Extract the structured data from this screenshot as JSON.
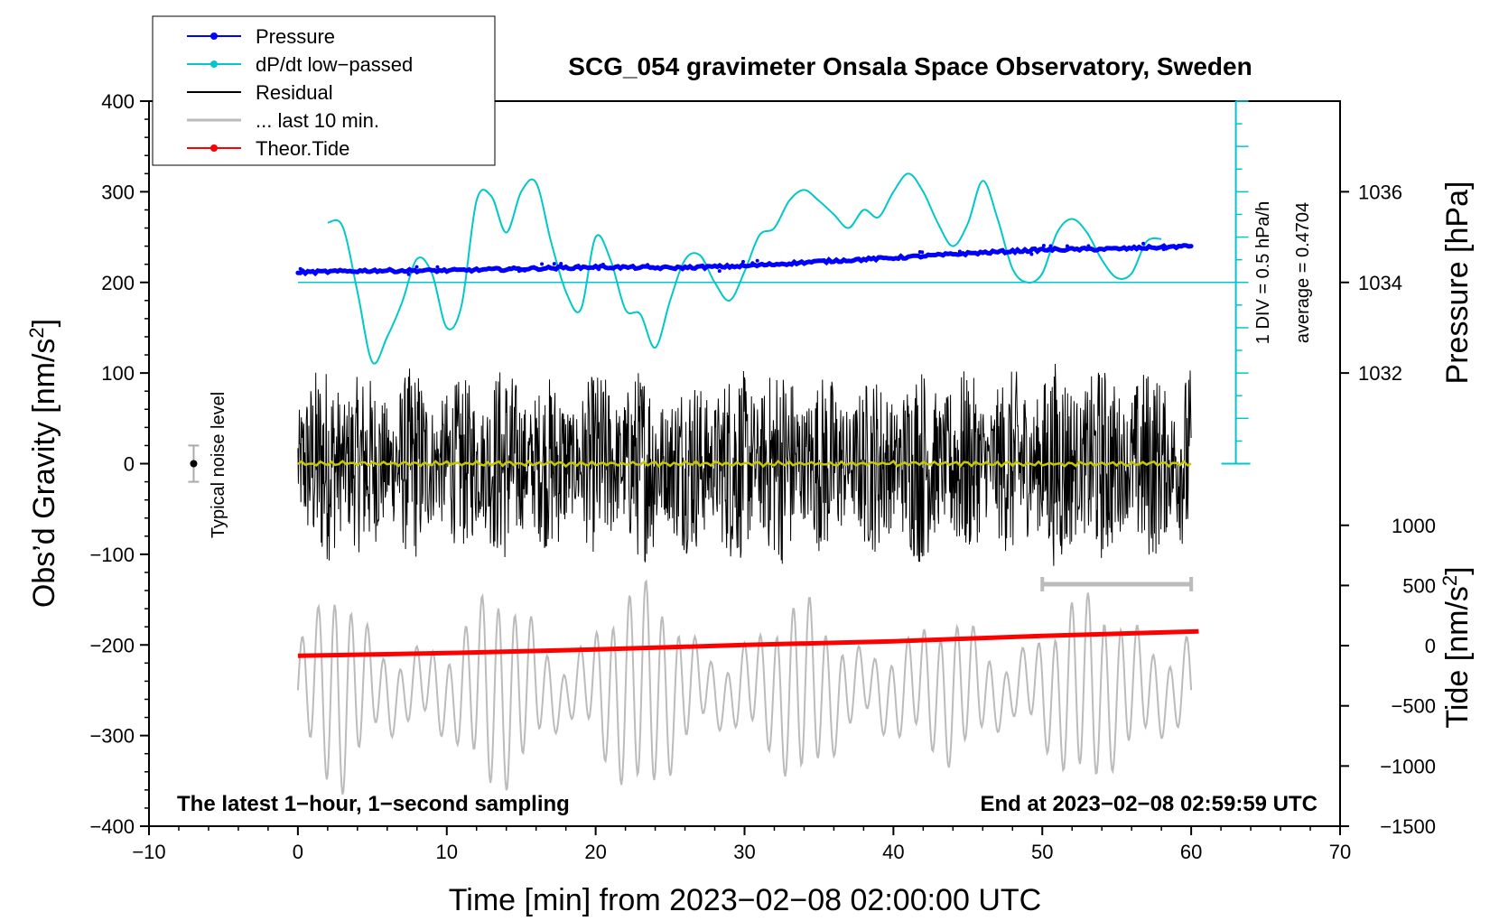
{
  "chart_data": {
    "type": "line",
    "title": "SCG_054 gravimeter Onsala Space Observatory, Sweden",
    "xlabel": "Time [min] from 2023−02−08 02:00:00 UTC",
    "ylabel_left": "Obs’d Gravity [nm/s",
    "ylabel_left_sup": "2",
    "ylabel_left_tail": "]",
    "ylabel_pressure": "Pressure [hPa]",
    "ylabel_tide": "Tide [nm/s",
    "ylabel_tide_sup": "2",
    "ylabel_tide_tail": "]",
    "xlim": [
      -10,
      70
    ],
    "ylim_left": [
      -400,
      400
    ],
    "x_ticks": [
      -10,
      0,
      10,
      20,
      30,
      40,
      50,
      60,
      70
    ],
    "x_tick_labels": [
      "−10",
      "0",
      "10",
      "20",
      "30",
      "40",
      "50",
      "60",
      "70"
    ],
    "y_left_ticks": [
      400,
      300,
      200,
      100,
      0,
      -100,
      -200,
      -300,
      -400
    ],
    "y_left_tick_labels": [
      "400",
      "300",
      "200",
      "100",
      "0",
      "−100",
      "−200",
      "−300",
      "−400"
    ],
    "pressure_ticks": [
      1036,
      1034,
      1032
    ],
    "pressure_tick_labels": [
      "1036",
      "1034",
      "1032"
    ],
    "pressure_scale": {
      "ref_hpa": 1034,
      "ref_gravity": 200,
      "hpa_per_100": 2
    },
    "tide_ticks": [
      1000,
      500,
      0,
      -500,
      -1000,
      -1500
    ],
    "tide_tick_labels": [
      "1000",
      "500",
      "0",
      "−500",
      "−1000",
      "−1500"
    ],
    "tide_scale": {
      "tide_min": -1500,
      "tide_max": 1000,
      "gravity_at_min": -400,
      "gravity_at_max": -68
    },
    "noise_level": {
      "x": -7,
      "y": 0,
      "err": 20,
      "label": "Typical noise level"
    },
    "dpdt_scale_text": "1 DIV = 0.5 hPa/h",
    "dpdt_average_text": "average = 0.4704",
    "dpdt_axis": {
      "x": 63,
      "from": 200,
      "to": 0,
      "top": 400
    },
    "note_left": "The latest 1−hour, 1−second sampling",
    "note_right": "End at 2023−02−08 02:59:59 UTC",
    "last10_bracket": [
      50,
      60
    ],
    "legend": [
      {
        "label": "Pressure",
        "color": "#0000ff",
        "marker": true
      },
      {
        "label": "dP/dt low−passed",
        "color": "#00c8c8",
        "marker": true
      },
      {
        "label": "Residual",
        "color": "#000000",
        "marker": false
      },
      {
        "label": "... last 10 min.",
        "color": "#bbbbbb",
        "marker": false
      },
      {
        "label": "Theor.Tide",
        "color": "#ff0000",
        "marker": true
      }
    ],
    "series": [
      {
        "name": "Pressure",
        "unit": "hPa",
        "color": "#0000ff",
        "x": [
          0,
          5,
          10,
          15,
          20,
          25,
          30,
          35,
          40,
          45,
          50,
          55,
          60
        ],
        "values": [
          1034.22,
          1034.26,
          1034.26,
          1034.3,
          1034.34,
          1034.32,
          1034.36,
          1034.46,
          1034.54,
          1034.64,
          1034.72,
          1034.74,
          1034.8
        ]
      },
      {
        "name": "dP/dt low−passed",
        "unit": "nm/s2 equiv.",
        "color": "#00c8c8",
        "x": [
          2,
          3,
          4,
          5,
          6,
          7,
          8,
          9,
          10,
          11,
          12,
          13,
          14,
          15,
          16,
          17,
          18,
          19,
          20,
          21,
          22,
          23,
          24,
          25,
          26,
          27,
          28,
          29,
          30,
          31,
          32,
          33,
          34,
          35,
          36,
          37,
          38,
          39,
          40,
          41,
          42,
          43,
          44,
          45,
          46,
          47,
          48,
          49,
          50,
          51,
          52,
          53,
          54,
          55,
          56,
          57,
          58
        ],
        "values": [
          266,
          262,
          190,
          112,
          140,
          178,
          226,
          210,
          150,
          175,
          290,
          295,
          255,
          300,
          310,
          245,
          190,
          170,
          250,
          225,
          170,
          165,
          128,
          180,
          225,
          230,
          200,
          180,
          212,
          252,
          260,
          290,
          302,
          290,
          275,
          260,
          280,
          272,
          300,
          320,
          300,
          265,
          240,
          265,
          312,
          270,
          215,
          200,
          210,
          255,
          270,
          255,
          225,
          205,
          210,
          245,
          248
        ]
      },
      {
        "name": "Residual",
        "unit": "nm/s2",
        "color": "#000000",
        "x_range": [
          0,
          60
        ],
        "amp": [
          100,
          120,
          95,
          110,
          90,
          115,
          100,
          95,
          105,
          110,
          100,
          108,
          115,
          110,
          95,
          100,
          112,
          105,
          100,
          112,
          118,
          105,
          108,
          110
        ]
      },
      {
        "name": "Residual smoothed",
        "unit": "nm/s2",
        "color": "#c8c800",
        "x_range": [
          0,
          60
        ],
        "values": [
          0
        ]
      },
      {
        "name": "... last 10 min.",
        "unit": "nm/s2",
        "color": "#bbbbbb",
        "x_range": [
          0,
          60
        ],
        "center": -250,
        "amp": [
          60,
          100,
          60,
          90,
          55,
          95,
          100,
          70,
          90,
          100,
          90,
          75,
          60,
          90,
          85,
          80,
          55,
          70,
          60,
          95,
          95,
          75,
          90,
          100
        ]
      },
      {
        "name": "Theor.Tide",
        "unit": "nm/s2",
        "color": "#ff0000",
        "x": [
          0,
          10,
          20,
          30,
          40,
          50,
          60.5
        ],
        "values": [
          -212,
          -209,
          -205,
          -200,
          -196,
          -190,
          -185
        ]
      }
    ]
  }
}
